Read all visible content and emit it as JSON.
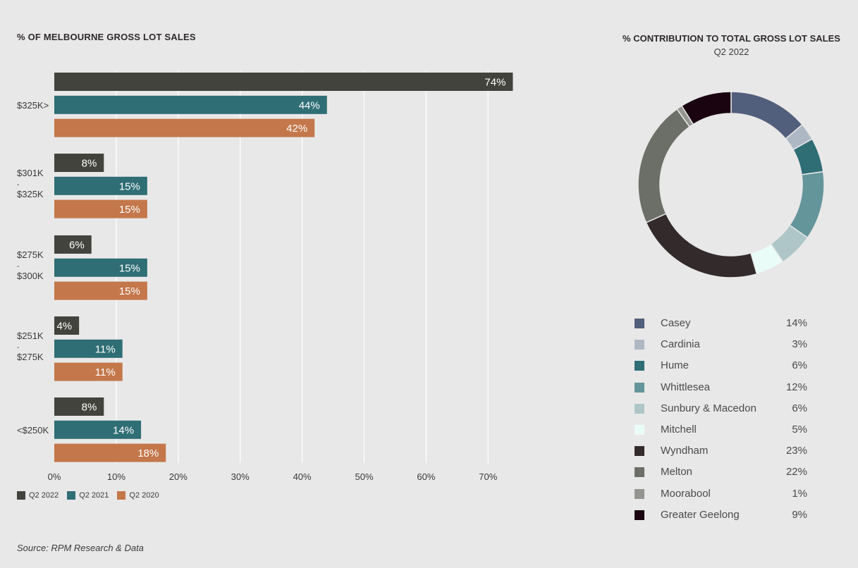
{
  "left_chart": {
    "title": "% OF MELBOURNE GROSS LOT SALES",
    "source": "Source: RPM Research & Data"
  },
  "right_chart": {
    "title": "% CONTRIBUTION TO TOTAL GROSS LOT SALES",
    "subtitle": "Q2 2022"
  },
  "chart_data": [
    {
      "type": "bar",
      "orientation": "horizontal",
      "title": "% OF MELBOURNE GROSS LOT SALES",
      "categories": [
        "$325K>",
        "$301K\n-\n$325K",
        "$275K\n-\n$300K",
        "$251K\n-\n$275K",
        "<$250K"
      ],
      "category_lines": [
        [
          "$325K>"
        ],
        [
          "$301K",
          "-",
          "$325K"
        ],
        [
          "$275K",
          "-",
          "$300K"
        ],
        [
          "$251K",
          "-",
          "$275K"
        ],
        [
          "<$250K"
        ]
      ],
      "series": [
        {
          "name": "Q2 2022",
          "color": "#43433e",
          "values": [
            74,
            8,
            6,
            4,
            8
          ],
          "labels": [
            "74%",
            "8%",
            "6%",
            "4%",
            "8%"
          ]
        },
        {
          "name": "Q2 2021",
          "color": "#2f6e75",
          "values": [
            44,
            15,
            15,
            11,
            14
          ],
          "labels": [
            "44%",
            "15%",
            "15%",
            "11%",
            "14%"
          ]
        },
        {
          "name": "Q2 2020",
          "color": "#c3774a",
          "values": [
            42,
            15,
            15,
            11,
            18
          ],
          "labels": [
            "42%",
            "15%",
            "15%",
            "11%",
            "18%"
          ]
        }
      ],
      "xlim": [
        0,
        75
      ],
      "xticks": [
        0,
        10,
        20,
        30,
        40,
        50,
        60,
        70
      ],
      "xtick_labels": [
        "0%",
        "10%",
        "20%",
        "30%",
        "40%",
        "50%",
        "60%",
        "70%"
      ],
      "grid": true,
      "legend_position": "bottom-left"
    },
    {
      "type": "pie",
      "variant": "donut",
      "title": "% CONTRIBUTION TO TOTAL GROSS LOT SALES",
      "subtitle": "Q2 2022",
      "categories": [
        "Casey",
        "Cardinia",
        "Hume",
        "Whittlesea",
        "Sunbury & Macedon",
        "Mitchell",
        "Wyndham",
        "Melton",
        "Moorabool",
        "Greater Geelong"
      ],
      "values": [
        14,
        3,
        6,
        12,
        6,
        5,
        23,
        22,
        1,
        9
      ],
      "labels": [
        "14%",
        "3%",
        "6%",
        "12%",
        "6%",
        "5%",
        "23%",
        "22%",
        "1%",
        "9%"
      ],
      "colors": [
        "#515e7c",
        "#aeb8c5",
        "#2f6e75",
        "#64959a",
        "#aec6c8",
        "#eafcf8",
        "#332a2c",
        "#6b6f67",
        "#949491",
        "#190410"
      ],
      "legend_position": "bottom"
    }
  ]
}
